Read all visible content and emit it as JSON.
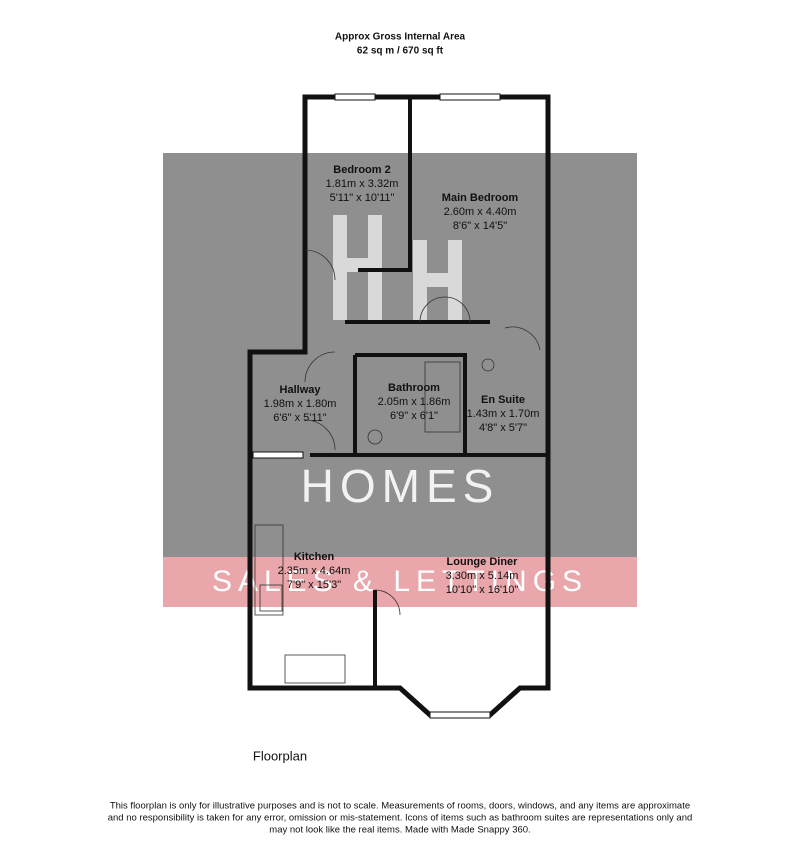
{
  "header": {
    "lines": [
      "Approx Gross Internal Area",
      "62 sq m / 670 sq ft"
    ]
  },
  "watermark": {
    "brand": "HOMES",
    "tagline": "SALES & LETTINGS"
  },
  "rooms": [
    {
      "name": "Bedroom 2",
      "metric": "1.81m x 3.32m",
      "imperial": "5'11\" x 10'11\""
    },
    {
      "name": "Main Bedroom",
      "metric": "2.60m x 4.40m",
      "imperial": "8'6\" x 14'5\""
    },
    {
      "name": "Hallway",
      "metric": "1.98m x 1.80m",
      "imperial": "6'6\" x 5'11\""
    },
    {
      "name": "Bathroom",
      "metric": "2.05m x 1.86m",
      "imperial": "6'9\" x 6'1\""
    },
    {
      "name": "En Suite",
      "metric": "1.43m x 1.70m",
      "imperial": "4'8\" x 5'7\""
    },
    {
      "name": "Kitchen",
      "metric": "2.35m x 4.64m",
      "imperial": "7'9\" x 15'3\""
    },
    {
      "name": "Lounge Diner",
      "metric": "3.30m x 5.14m",
      "imperial": "10'10\" x 16'10\""
    }
  ],
  "label": "Floorplan",
  "disclaimer": [
    "This floorplan is only for illustrative purposes and is not to scale. Measurements of rooms, doors, windows, and any items are approximate",
    "and no responsibility is taken for any error, omission or mis-statement. Icons of items such as bathroom suites are representations only and",
    "may not look like the real items. Made with Made Snappy 360."
  ]
}
